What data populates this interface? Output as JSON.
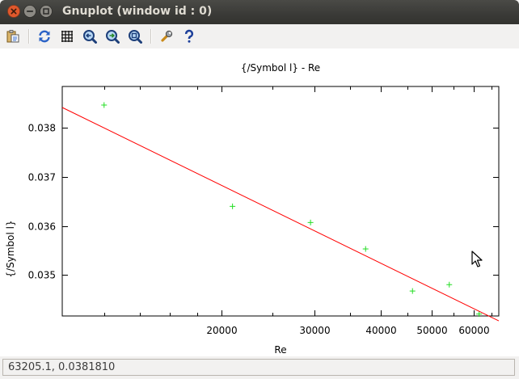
{
  "window": {
    "title": "Gnuplot (window id : 0)"
  },
  "toolbar": {
    "items": [
      {
        "name": "copy-to-clipboard",
        "icon": "clipboard-icon"
      },
      {
        "name": "replot",
        "icon": "replot-icon"
      },
      {
        "name": "toggle-grid",
        "icon": "grid-icon"
      },
      {
        "name": "previous-zoom",
        "icon": "zoom-previous-icon"
      },
      {
        "name": "next-zoom",
        "icon": "zoom-next-icon"
      },
      {
        "name": "autoscale",
        "icon": "zoom-autoscale-icon"
      },
      {
        "name": "configure",
        "icon": "wrench-icon"
      },
      {
        "name": "help",
        "icon": "help-icon"
      }
    ]
  },
  "colors": {
    "fit_line": "#ff0000",
    "points": "#22dd22",
    "titlebar": "#3c3b37"
  },
  "status": {
    "text": "63205.1,  0.0381810"
  },
  "chart_data": {
    "type": "scatter",
    "title": "{/Symbol l} - Re",
    "xlabel": "Re",
    "ylabel": "{/Symbol l}",
    "x_scale": "log",
    "xlim": [
      10000,
      67000
    ],
    "ylim": [
      0.03416,
      0.03885
    ],
    "x_ticks": [
      {
        "value": 20000,
        "label": "20000"
      },
      {
        "value": 30000,
        "label": "30000"
      },
      {
        "value": 40000,
        "label": "40000"
      },
      {
        "value": 50000,
        "label": "50000"
      },
      {
        "value": 60000,
        "label": "60000"
      }
    ],
    "x_minor_ticks": [
      12000,
      14000,
      16000,
      18000,
      25000,
      35000,
      45000,
      55000,
      65000
    ],
    "y_ticks": [
      {
        "value": 0.035,
        "label": "0.035"
      },
      {
        "value": 0.036,
        "label": "0.036"
      },
      {
        "value": 0.037,
        "label": "0.037"
      },
      {
        "value": 0.038,
        "label": "0.038"
      }
    ],
    "grid": false,
    "legend": "none",
    "series": [
      {
        "type": "scatter",
        "marker": "+",
        "color": "#22dd22",
        "x": [
          12000,
          21000,
          29500,
          37500,
          46000,
          54000,
          61500
        ],
        "y": [
          0.03847,
          0.0364,
          0.03607,
          0.03553,
          0.03467,
          0.0348,
          0.0342
        ]
      },
      {
        "type": "line",
        "color": "#ff0000",
        "x": [
          10000,
          67000
        ],
        "y": [
          0.03842,
          0.03406
        ]
      }
    ]
  }
}
